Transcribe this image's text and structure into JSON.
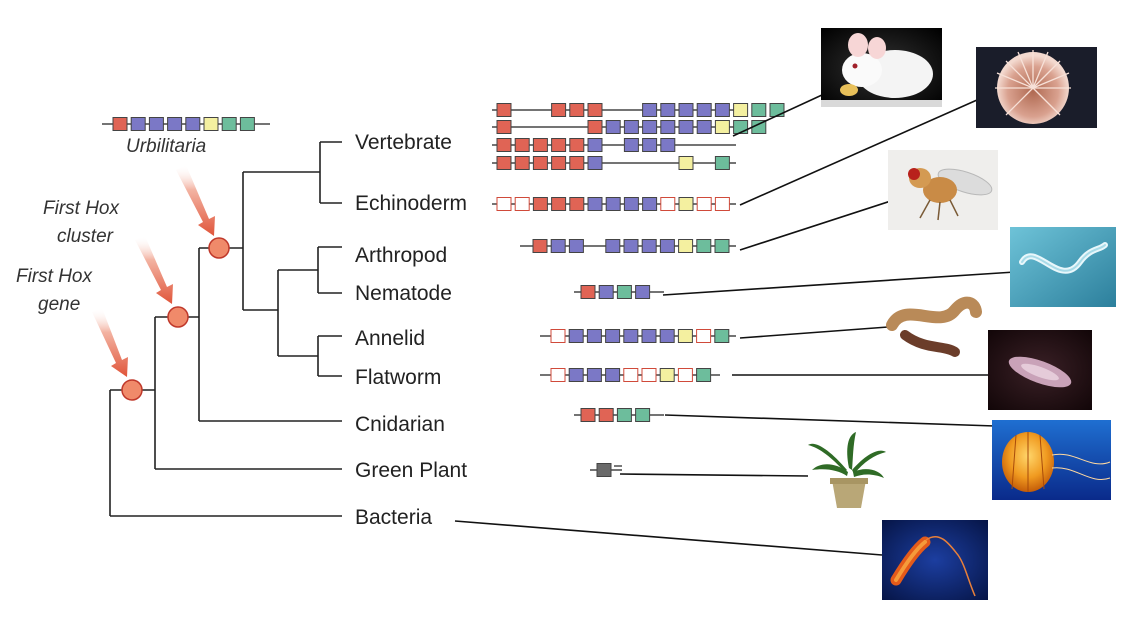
{
  "figure": {
    "annotations": {
      "urbilitaria": "Urbilitaria",
      "first_hox_cluster": "First Hox cluster",
      "first_hox_gene": "First Hox gene"
    },
    "colors": {
      "red": "#e06455",
      "blue": "#7b78c6",
      "yellow": "#f4f0a0",
      "green": "#6dbd9c",
      "gray": "#6a6a6a",
      "empty": "#ffffff",
      "arrow": "#e0553a",
      "node": "#f08a6a"
    },
    "taxa": [
      {
        "key": "vertebrate",
        "label": "Vertebrate",
        "photo": "mouse"
      },
      {
        "key": "echinoderm",
        "label": "Echinoderm",
        "photo": "sea-urchin"
      },
      {
        "key": "arthropod",
        "label": "Arthropod",
        "photo": "fruit-fly"
      },
      {
        "key": "nematode",
        "label": "Nematode",
        "photo": "nematode-worm"
      },
      {
        "key": "annelid",
        "label": "Annelid",
        "photo": "earthworm"
      },
      {
        "key": "flatworm",
        "label": "Flatworm",
        "photo": "flatworm"
      },
      {
        "key": "cnidarian",
        "label": "Cnidarian",
        "photo": "jellyfish"
      },
      {
        "key": "green_plant",
        "label": "Green Plant",
        "photo": "potted-plant"
      },
      {
        "key": "bacteria",
        "label": "Bacteria",
        "photo": "bacterium"
      }
    ]
  }
}
